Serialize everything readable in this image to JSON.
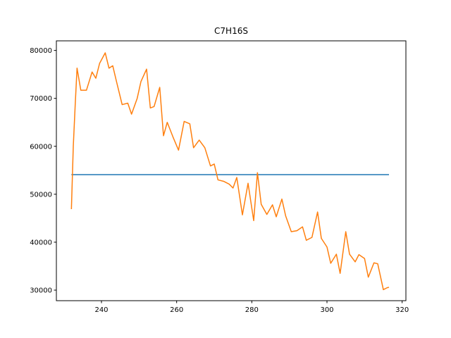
{
  "chart_data": {
    "type": "line",
    "title": "C7H16S",
    "xlabel": "",
    "ylabel": "",
    "xlim": [
      228,
      321
    ],
    "ylim": [
      27800,
      82000
    ],
    "x_ticks": [
      240,
      260,
      280,
      300,
      320
    ],
    "y_ticks": [
      30000,
      40000,
      50000,
      60000,
      70000,
      80000
    ],
    "grid": false,
    "series": [
      {
        "color": "#1f77b4",
        "x": [
          232,
          316.5
        ],
        "y": [
          54100,
          54100
        ]
      },
      {
        "color": "#ff7f0e",
        "x": [
          232,
          232.5,
          233,
          233.5,
          234.5,
          236,
          237.5,
          238.5,
          239.5,
          241,
          242,
          243,
          244,
          245.5,
          247,
          248,
          249.5,
          250.5,
          252,
          253,
          254,
          255.5,
          256.5,
          257.5,
          259,
          260.5,
          262,
          263.5,
          264.5,
          266,
          267.5,
          269,
          270,
          271,
          272.5,
          274,
          275,
          276,
          277.5,
          279,
          280.5,
          281.5,
          282.5,
          284,
          285.5,
          286.5,
          288,
          289,
          290.5,
          292,
          293.5,
          294.5,
          296,
          297.5,
          298.5,
          300,
          301,
          302.5,
          303.5,
          305,
          306,
          307.5,
          308.5,
          310,
          311,
          312.5,
          313.5,
          315,
          316,
          316.5
        ],
        "y": [
          46900,
          60000,
          68500,
          76300,
          71700,
          71700,
          75500,
          74200,
          77300,
          79500,
          76300,
          76800,
          73500,
          68700,
          69000,
          66700,
          70000,
          73500,
          76100,
          68000,
          68300,
          72300,
          62200,
          65000,
          62000,
          59200,
          65200,
          64700,
          59700,
          61300,
          59700,
          55900,
          56300,
          53000,
          52700,
          52100,
          51300,
          53500,
          45700,
          52300,
          44500,
          54500,
          47900,
          45800,
          47800,
          45300,
          49000,
          45500,
          42200,
          42400,
          43200,
          40400,
          41000,
          46300,
          40800,
          39000,
          35600,
          37500,
          33500,
          42200,
          37500,
          35900,
          37400,
          36600,
          32700,
          35700,
          35500,
          30100,
          30500,
          30600
        ]
      }
    ]
  }
}
